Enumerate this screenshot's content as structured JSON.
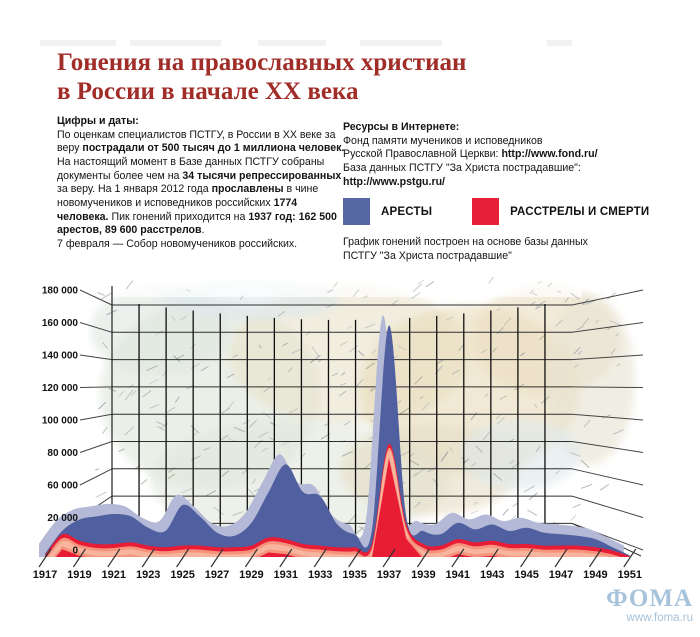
{
  "header": {
    "title": "Гонения на православных христиан\nв России в начале XX века"
  },
  "stats_block": {
    "heading": "Цифры и даты:",
    "runs": [
      {
        "t": "По оценкам специалистов ПСТГУ, в России в XX веке за веру ",
        "b": false
      },
      {
        "t": "пострадали от 500 тысяч до 1 миллиона человек.",
        "b": true
      },
      {
        "t": " На настоящий момент в Базе данных ПСТГУ собраны документы более чем на ",
        "b": false
      },
      {
        "t": "34 тысячи репрессированных",
        "b": true
      },
      {
        "t": " за веру. На 1 января 2012 года ",
        "b": false
      },
      {
        "t": "прославлены",
        "b": true
      },
      {
        "t": " в чине новомучеников и исповедников российских ",
        "b": false
      },
      {
        "t": "1774 человека.",
        "b": true
      },
      {
        "t": " Пик гонений приходится на ",
        "b": false
      },
      {
        "t": "1937 год: 162 500 арестов, 89 600 расстрелов",
        "b": true
      },
      {
        "t": ".",
        "b": false
      }
    ],
    "last_line": "7 февраля — Собор новомучеников российских."
  },
  "resources_block": {
    "heading": "Ресурсы в Интернете:",
    "lines": [
      [
        {
          "t": "Фонд памяти мучеников и исповедников",
          "b": false
        }
      ],
      [
        {
          "t": "Русской Православной Церкви: ",
          "b": false
        },
        {
          "t": "http://www.fond.ru/",
          "b": true
        }
      ],
      [
        {
          "t": "База данных ПСТГУ \"За Христа пострадавшие\":",
          "b": false
        }
      ],
      [
        {
          "t": "http://www.pstgu.ru/",
          "b": true
        }
      ]
    ]
  },
  "legend": {
    "items": [
      {
        "label": "АРЕСТЫ",
        "color": "#5668a3"
      },
      {
        "label": "РАССТРЕЛЫ И СМЕРТИ",
        "color": "#e81f38"
      }
    ]
  },
  "chart_note": "График гонений построен на основе базы данных ПСТГУ \"За Христа пострадавшие\"",
  "footer": {
    "logo": "ФОМА",
    "url": "www.foma.ru"
  },
  "colors": {
    "title": "#a12d28",
    "arrests_swatch": "#5668a3",
    "arrests_area": "#4f5f9f",
    "arrests_shadow": "#b3b9d6",
    "deaths_swatch": "#e81f38",
    "deaths_area": "#e81c35",
    "deaths_highlight": "#f59a82",
    "deaths_highlight_core": "#f8b8a0",
    "logo_blue": "#a6c3db"
  },
  "chart_data": {
    "type": "area",
    "title": "",
    "xlabel": "",
    "ylabel": "",
    "x": [
      1917,
      1918,
      1919,
      1920,
      1921,
      1922,
      1923,
      1924,
      1925,
      1926,
      1927,
      1928,
      1929,
      1930,
      1931,
      1932,
      1933,
      1934,
      1935,
      1936,
      1937,
      1938,
      1939,
      1940,
      1941,
      1942,
      1943,
      1944,
      1945,
      1946,
      1947,
      1948,
      1949,
      1950,
      1951
    ],
    "series": [
      {
        "name": "АРЕСТЫ",
        "color": "#4f5f9f",
        "values": [
          2000,
          16000,
          26000,
          30000,
          33000,
          30000,
          18000,
          16000,
          44000,
          30000,
          15000,
          13000,
          22000,
          60000,
          77000,
          60000,
          55000,
          20000,
          14000,
          16000,
          162500,
          30000,
          16000,
          14000,
          22000,
          17000,
          20000,
          16000,
          18000,
          15000,
          14000,
          13000,
          11000,
          6000,
          1000
        ]
      },
      {
        "name": "РАССТРЕЛЫ И СМЕРТИ",
        "color": "#e81c35",
        "values": [
          1000,
          14000,
          10000,
          8000,
          8000,
          9000,
          7000,
          6000,
          7000,
          7000,
          6000,
          6000,
          7000,
          12000,
          11000,
          8000,
          7000,
          6000,
          6000,
          8000,
          89600,
          21000,
          8000,
          7000,
          11000,
          9000,
          10000,
          8000,
          8000,
          7000,
          7000,
          7000,
          6000,
          4000,
          500
        ]
      }
    ],
    "ylim": [
      0,
      180000
    ],
    "y_axis_labels_as_printed": [
      "180 000",
      "160 000",
      "140 000",
      "120 000",
      "100 000",
      "80 000",
      "60 000",
      "20 000",
      "0"
    ],
    "x_tick_labels": [
      "1917",
      "1919",
      "1921",
      "1923",
      "1925",
      "1927",
      "1929",
      "1931",
      "1933",
      "1935",
      "1937",
      "1939",
      "1941",
      "1943",
      "1945",
      "1947",
      "1949",
      "1951"
    ],
    "grid": "perspective 3d grid over faded physical map of Russia",
    "legend_position": "top-right above chart"
  }
}
